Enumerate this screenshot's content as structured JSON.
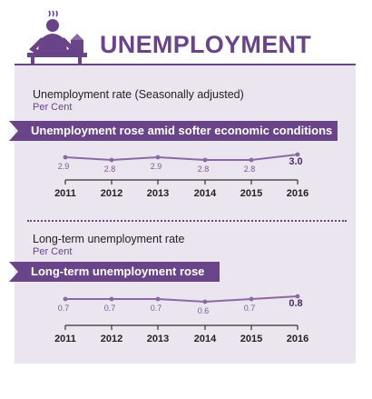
{
  "header": {
    "title": "UNEMPLOYMENT",
    "icon": "person-stress-icon"
  },
  "colors": {
    "accent": "#6a4488",
    "panel": "#ebe5ef",
    "line": "#8a6aa3"
  },
  "section1": {
    "caption": "Unemployment rate (Seasonally adjusted)",
    "unit": "Per Cent",
    "banner": "Unemployment rose amid softer economic conditions"
  },
  "section2": {
    "caption": "Long-term unemployment rate",
    "unit": "Per Cent",
    "banner": "Long-term unemployment rose"
  },
  "chart_data": [
    {
      "type": "line",
      "title": "Unemployment rate (Seasonally adjusted)",
      "ylabel": "Per Cent",
      "categories": [
        "2011",
        "2012",
        "2013",
        "2014",
        "2015",
        "2016"
      ],
      "value_labels": [
        "2.9",
        "2.8",
        "2.9",
        "2.8",
        "2.8",
        "3.0"
      ],
      "series": [
        {
          "values": [
            2.9,
            2.8,
            2.9,
            2.8,
            2.8,
            3.0
          ]
        }
      ],
      "ylim": [
        2.6,
        3.2
      ],
      "grid": false
    },
    {
      "type": "line",
      "title": "Long-term unemployment rate",
      "ylabel": "Per Cent",
      "categories": [
        "2011",
        "2012",
        "2013",
        "2014",
        "2015",
        "2016"
      ],
      "value_labels": [
        "0.7",
        "0.7",
        "0.7",
        "0.6",
        "0.7",
        "0.8"
      ],
      "series": [
        {
          "values": [
            0.7,
            0.7,
            0.7,
            0.6,
            0.7,
            0.8
          ]
        }
      ],
      "ylim": [
        0.4,
        1.0
      ],
      "grid": false
    }
  ]
}
